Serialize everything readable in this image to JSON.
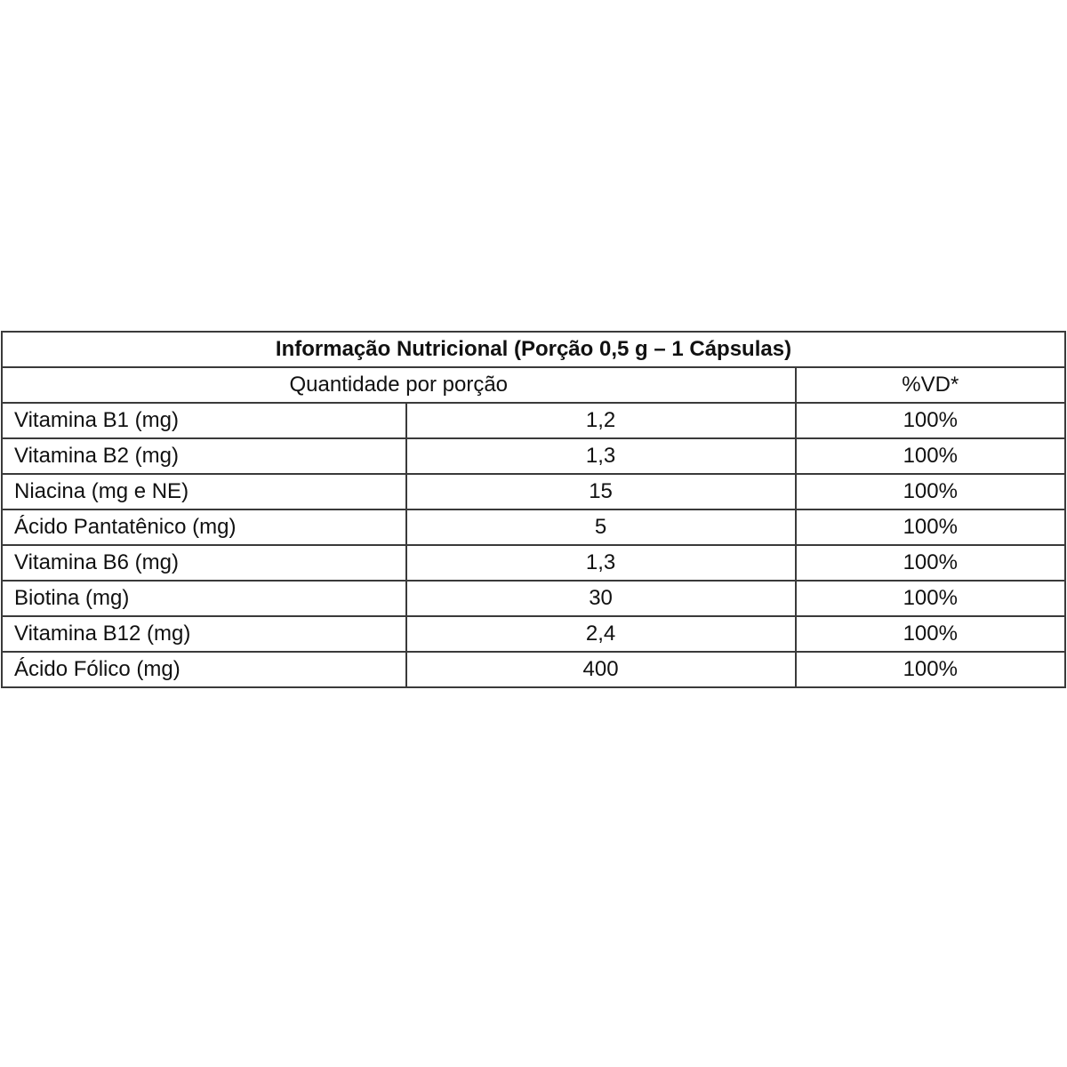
{
  "table": {
    "title": "Informação Nutricional (Porção 0,5 g – 1 Cápsulas)",
    "header": {
      "quantity": "Quantidade por porção",
      "dv": "%VD*"
    },
    "rows": [
      {
        "name": "Vitamina B1 (mg)",
        "amount": "1,2",
        "dv": "100%"
      },
      {
        "name": "Vitamina B2 (mg)",
        "amount": "1,3",
        "dv": "100%"
      },
      {
        "name": "Niacina (mg e NE)",
        "amount": "15",
        "dv": "100%"
      },
      {
        "name": "Ácido Pantatênico (mg)",
        "amount": "5",
        "dv": "100%"
      },
      {
        "name": "Vitamina B6 (mg)",
        "amount": "1,3",
        "dv": "100%"
      },
      {
        "name": "Biotina (mg)",
        "amount": "30",
        "dv": "100%"
      },
      {
        "name": "Vitamina B12 (mg)",
        "amount": "2,4",
        "dv": "100%"
      },
      {
        "name": "Ácido Fólico (mg)",
        "amount": "400",
        "dv": "100%"
      }
    ]
  }
}
